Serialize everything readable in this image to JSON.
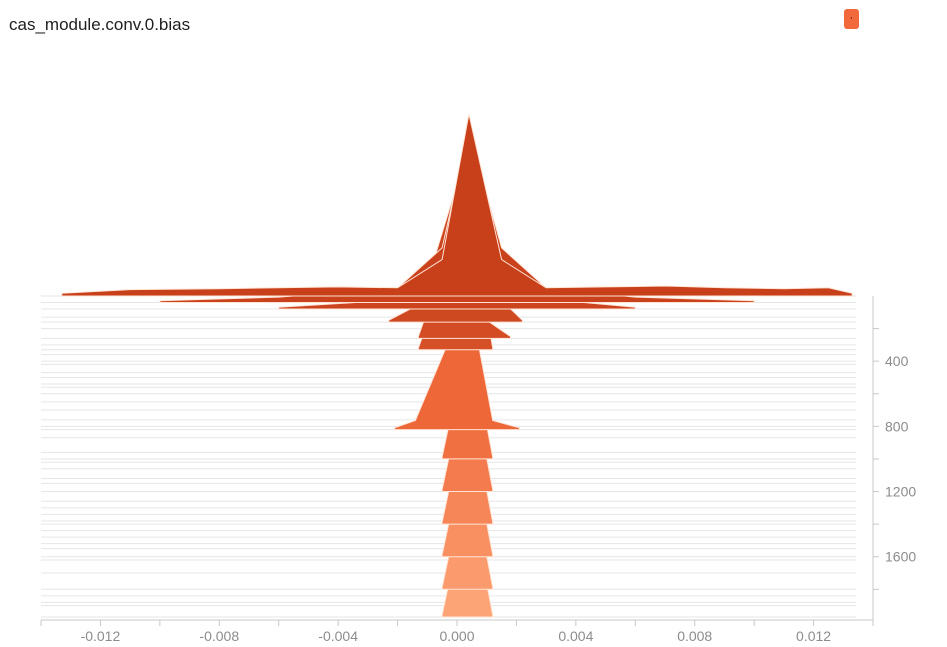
{
  "title": "cas_module.conv.0.bias",
  "legend_button_label": "·",
  "chart_data": {
    "type": "histogram-ridgeline",
    "title": "cas_module.conv.0.bias",
    "xlabel": "",
    "ylabel": "",
    "x_ticks": [
      -0.012,
      -0.008,
      -0.004,
      0.0,
      0.004,
      0.008,
      0.012
    ],
    "x_tick_labels": [
      "-0.012",
      "-0.008",
      "-0.004",
      "0.000",
      "0.004",
      "0.008",
      "0.012"
    ],
    "xlim": [
      -0.014,
      0.014
    ],
    "y_ticks": [
      400,
      800,
      1200,
      1600
    ],
    "y_tick_labels": [
      "400",
      "800",
      "1200",
      "1600"
    ],
    "ylim": [
      0,
      1970
    ],
    "step_axis": "offset",
    "colors": {
      "early": "#c7401a",
      "mid": "#f06a3c",
      "late": "#fda476"
    },
    "steps": [
      {
        "step": 0,
        "points": [
          [
            -0.0133,
            0.15
          ],
          [
            -0.011,
            0.35
          ],
          [
            -0.008,
            0.4
          ],
          [
            -0.006,
            0.45
          ],
          [
            -0.004,
            0.5
          ],
          [
            -0.002,
            0.45
          ],
          [
            -0.0005,
            2.0
          ],
          [
            0.0004,
            10.0
          ],
          [
            0.0015,
            2.0
          ],
          [
            0.003,
            0.45
          ],
          [
            0.005,
            0.5
          ],
          [
            0.007,
            0.55
          ],
          [
            0.009,
            0.45
          ],
          [
            0.011,
            0.4
          ],
          [
            0.0125,
            0.45
          ],
          [
            0.0133,
            0.15
          ]
        ]
      },
      {
        "step": 40,
        "points": [
          [
            -0.01,
            0.1
          ],
          [
            -0.006,
            0.3
          ],
          [
            -0.002,
            0.8
          ],
          [
            -0.0005,
            3.0
          ],
          [
            0.0004,
            9.5
          ],
          [
            0.0015,
            3.0
          ],
          [
            0.003,
            0.8
          ],
          [
            0.006,
            0.3
          ],
          [
            0.01,
            0.1
          ]
        ]
      },
      {
        "step": 80,
        "points": [
          [
            -0.006,
            0.1
          ],
          [
            -0.003,
            0.4
          ],
          [
            -0.001,
            1.5
          ],
          [
            0.0004,
            9.0
          ],
          [
            0.0015,
            1.5
          ],
          [
            0.004,
            0.4
          ],
          [
            0.006,
            0.1
          ]
        ]
      },
      {
        "step": 160,
        "points": [
          [
            -0.0023,
            0.1
          ],
          [
            -0.001,
            1.2
          ],
          [
            0.0004,
            8.5
          ],
          [
            0.0015,
            1.2
          ],
          [
            0.0022,
            0.1
          ]
        ]
      },
      {
        "step": 260,
        "points": [
          [
            -0.0013,
            0.1
          ],
          [
            0.0004,
            8.0
          ],
          [
            0.001,
            1.0
          ],
          [
            0.0018,
            0.1
          ]
        ]
      },
      {
        "step": 330,
        "points": [
          [
            -0.0013,
            0.1
          ],
          [
            0.0004,
            7.8
          ],
          [
            0.0012,
            0.1
          ]
        ]
      },
      {
        "step": 820,
        "points": [
          [
            -0.0021,
            0.1
          ],
          [
            -0.0014,
            0.5
          ],
          [
            0.0004,
            7.5
          ],
          [
            0.0012,
            0.5
          ],
          [
            0.0021,
            0.1
          ]
        ]
      },
      {
        "step": 1000,
        "points": [
          [
            -0.0005,
            0.1
          ],
          [
            0.0004,
            7.0
          ],
          [
            0.0012,
            0.1
          ]
        ]
      },
      {
        "step": 1200,
        "points": [
          [
            -0.0005,
            0.1
          ],
          [
            0.0004,
            7.0
          ],
          [
            0.0012,
            0.1
          ]
        ]
      },
      {
        "step": 1400,
        "points": [
          [
            -0.0005,
            0.1
          ],
          [
            0.0004,
            7.0
          ],
          [
            0.0012,
            0.1
          ]
        ]
      },
      {
        "step": 1600,
        "points": [
          [
            -0.0005,
            0.1
          ],
          [
            0.0004,
            7.0
          ],
          [
            0.0012,
            0.1
          ]
        ]
      },
      {
        "step": 1800,
        "points": [
          [
            -0.0005,
            0.1
          ],
          [
            0.0004,
            7.0
          ],
          [
            0.0012,
            0.1
          ]
        ]
      },
      {
        "step": 1970,
        "points": [
          [
            -0.0005,
            0.1
          ],
          [
            0.0004,
            7.0
          ],
          [
            0.0012,
            0.1
          ]
        ]
      }
    ],
    "grid_steps": [
      0,
      40,
      80,
      130,
      160,
      200,
      260,
      300,
      330,
      360,
      400,
      420,
      470,
      500,
      540,
      560,
      600,
      650,
      700,
      760,
      800,
      820,
      870,
      960,
      1000,
      1020,
      1060,
      1120,
      1150,
      1200,
      1260,
      1300,
      1340,
      1380,
      1400,
      1440,
      1480,
      1520,
      1550,
      1600,
      1620,
      1700,
      1800,
      1840,
      1880,
      1900,
      1970
    ]
  }
}
